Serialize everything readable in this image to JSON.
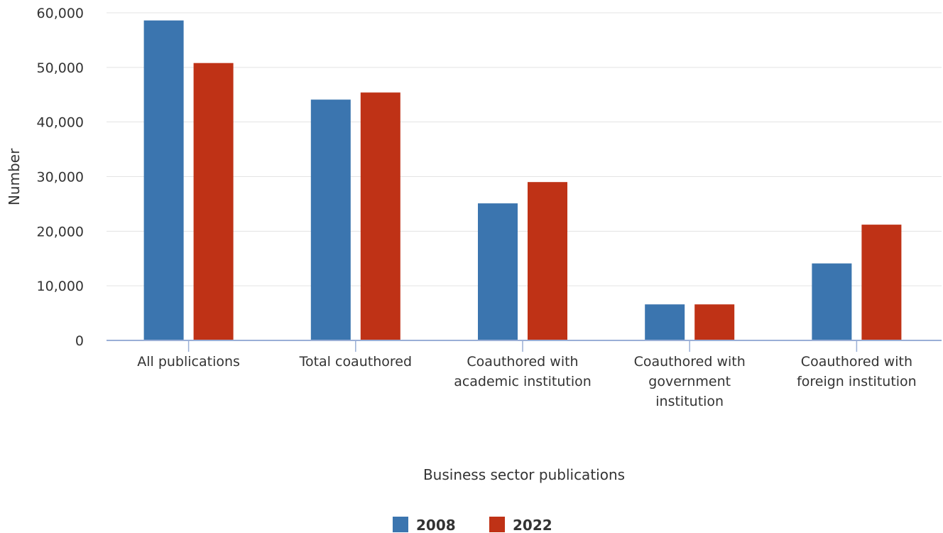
{
  "chart_data": {
    "type": "bar",
    "xlabel": "Business sector publications",
    "ylabel": "Number",
    "ylim": [
      0,
      60000
    ],
    "yticks": [
      0,
      10000,
      20000,
      30000,
      40000,
      50000,
      60000
    ],
    "ytick_labels": [
      "0",
      "10,000",
      "20,000",
      "30,000",
      "40,000",
      "50,000",
      "60,000"
    ],
    "grid": true,
    "legend_position": "bottom-center",
    "categories": [
      [
        "All publications"
      ],
      [
        "Total coauthored"
      ],
      [
        "Coauthored with",
        "academic institution"
      ],
      [
        "Coauthored with",
        "government",
        "institution"
      ],
      [
        "Coauthored with",
        "foreign institution"
      ]
    ],
    "series": [
      {
        "name": "2008",
        "color": "#3b75af",
        "values": [
          58600,
          44100,
          25100,
          6600,
          14100
        ]
      },
      {
        "name": "2022",
        "color": "#bf3216",
        "values": [
          50800,
          45400,
          29000,
          6600,
          21200
        ]
      }
    ]
  }
}
